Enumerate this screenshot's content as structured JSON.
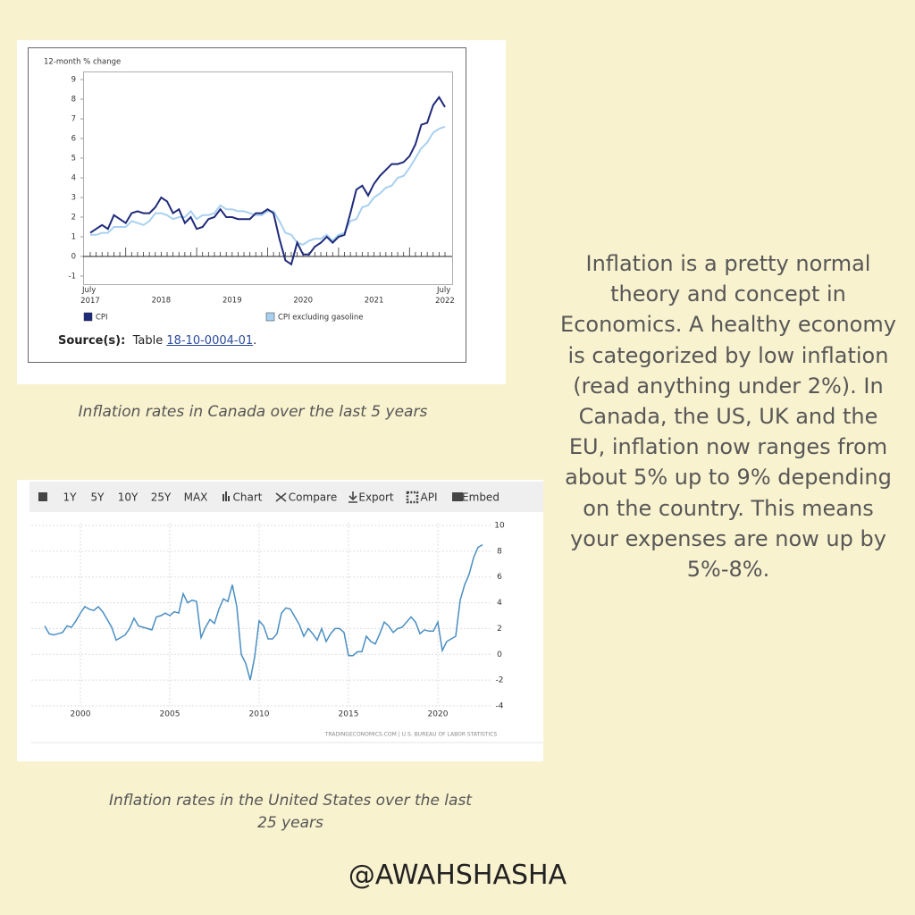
{
  "chart_data": [
    {
      "type": "line",
      "y_label": "12-month % change",
      "categories": [
        "July 2017",
        null,
        null,
        null,
        null,
        null,
        null,
        null,
        null,
        null,
        null,
        null,
        "2018",
        null,
        null,
        null,
        null,
        null,
        null,
        null,
        null,
        null,
        null,
        null,
        "2019",
        null,
        null,
        null,
        null,
        null,
        null,
        null,
        null,
        null,
        null,
        null,
        "2020",
        null,
        null,
        null,
        null,
        null,
        null,
        null,
        null,
        null,
        null,
        null,
        "2021",
        null,
        null,
        null,
        null,
        null,
        null,
        null,
        null,
        null,
        null,
        null,
        "July 2022"
      ],
      "series": [
        {
          "name": "CPI",
          "color": "#1f2a7a",
          "values": [
            1.2,
            1.4,
            1.6,
            1.4,
            2.1,
            1.9,
            1.7,
            2.2,
            2.3,
            2.2,
            2.2,
            2.5,
            3.0,
            2.8,
            2.2,
            2.4,
            1.7,
            2.0,
            1.4,
            1.5,
            1.9,
            2.0,
            2.4,
            2.0,
            2.0,
            1.9,
            1.9,
            1.9,
            2.2,
            2.2,
            2.4,
            2.2,
            0.9,
            -0.2,
            -0.4,
            0.7,
            0.1,
            0.1,
            0.5,
            0.7,
            1.0,
            0.7,
            1.0,
            1.1,
            2.2,
            3.4,
            3.6,
            3.1,
            3.7,
            4.1,
            4.4,
            4.7,
            4.7,
            4.8,
            5.1,
            5.7,
            6.7,
            6.8,
            7.7,
            8.1,
            7.6
          ]
        },
        {
          "name": "CPI excluding gasoline",
          "color": "#a8d0f0",
          "values": [
            1.1,
            1.1,
            1.2,
            1.2,
            1.5,
            1.5,
            1.5,
            1.8,
            1.7,
            1.6,
            1.8,
            2.2,
            2.2,
            2.1,
            1.9,
            2.0,
            2.0,
            2.3,
            1.9,
            2.1,
            2.1,
            2.2,
            2.6,
            2.4,
            2.4,
            2.3,
            2.3,
            2.2,
            2.1,
            2.1,
            2.3,
            2.3,
            1.8,
            1.2,
            1.1,
            0.7,
            0.6,
            0.8,
            0.9,
            0.9,
            1.1,
            0.8,
            1.1,
            1.2,
            1.8,
            1.9,
            2.5,
            2.6,
            3.0,
            3.2,
            3.5,
            3.6,
            4.0,
            4.1,
            4.5,
            5.0,
            5.5,
            5.8,
            6.3,
            6.5,
            6.6
          ]
        }
      ],
      "ylim": [
        -1,
        9
      ],
      "yticks": [
        -1,
        0,
        1,
        2,
        3,
        4,
        5,
        6,
        7,
        8,
        9
      ],
      "legend": "bottom",
      "source": {
        "label": "Source(s):",
        "text": "Table",
        "link": "18-10-0004-01",
        "end": "."
      }
    },
    {
      "type": "line",
      "toolbar": [
        "1Y",
        "5Y",
        "10Y",
        "25Y",
        "MAX",
        "Chart",
        "Compare",
        "Export",
        "API",
        "Embed"
      ],
      "x": [
        1998,
        1998.25,
        1998.5,
        1998.75,
        1999,
        1999.25,
        1999.5,
        1999.75,
        2000,
        2000.25,
        2000.5,
        2000.75,
        2001,
        2001.25,
        2001.5,
        2001.75,
        2002,
        2002.25,
        2002.5,
        2002.75,
        2003,
        2003.25,
        2003.5,
        2003.75,
        2004,
        2004.25,
        2004.5,
        2004.75,
        2005,
        2005.25,
        2005.5,
        2005.75,
        2006,
        2006.25,
        2006.5,
        2006.75,
        2007,
        2007.25,
        2007.5,
        2007.75,
        2008,
        2008.25,
        2008.5,
        2008.75,
        2009,
        2009.25,
        2009.5,
        2009.75,
        2010,
        2010.25,
        2010.5,
        2010.75,
        2011,
        2011.25,
        2011.5,
        2011.75,
        2012,
        2012.25,
        2012.5,
        2012.75,
        2013,
        2013.25,
        2013.5,
        2013.75,
        2014,
        2014.25,
        2014.5,
        2014.75,
        2015,
        2015.25,
        2015.5,
        2015.75,
        2016,
        2016.25,
        2016.5,
        2016.75,
        2017,
        2017.25,
        2017.5,
        2017.75,
        2018,
        2018.25,
        2018.5,
        2018.75,
        2019,
        2019.25,
        2019.5,
        2019.75,
        2020,
        2020.25,
        2020.5,
        2020.75,
        2021,
        2021.25,
        2021.5,
        2021.75,
        2022,
        2022.25,
        2022.5
      ],
      "series": [
        {
          "name": null,
          "color": "#4a8ec2",
          "values": [
            2.2,
            1.6,
            1.5,
            1.6,
            1.7,
            2.2,
            2.1,
            2.6,
            3.2,
            3.7,
            3.5,
            3.4,
            3.7,
            3.3,
            2.7,
            2.1,
            1.1,
            1.3,
            1.5,
            2.0,
            2.8,
            2.2,
            2.1,
            2.0,
            1.9,
            2.9,
            3.0,
            3.2,
            3.0,
            3.3,
            3.2,
            4.7,
            4.0,
            4.2,
            4.1,
            1.3,
            2.1,
            2.7,
            2.4,
            3.5,
            4.3,
            4.1,
            5.4,
            3.7,
            0.0,
            -0.7,
            -2.0,
            -0.2,
            2.6,
            2.2,
            1.2,
            1.2,
            1.6,
            3.2,
            3.6,
            3.5,
            2.9,
            2.3,
            1.4,
            2.0,
            1.6,
            1.1,
            2.0,
            1.0,
            1.6,
            2.0,
            2.0,
            1.7,
            -0.1,
            -0.1,
            0.2,
            0.2,
            1.4,
            1.0,
            0.8,
            1.6,
            2.5,
            2.2,
            1.7,
            2.0,
            2.1,
            2.5,
            2.9,
            2.5,
            1.6,
            1.9,
            1.8,
            1.8,
            2.5,
            0.3,
            1.0,
            1.2,
            1.4,
            4.2,
            5.4,
            6.2,
            7.5,
            8.3,
            8.5
          ]
        }
      ],
      "xlim": [
        1997.25,
        2023.75
      ],
      "xticks": [
        2000,
        2005,
        2010,
        2015,
        2020
      ],
      "ylim": [
        -4,
        10
      ],
      "yticks": [
        -4,
        -2,
        0,
        2,
        4,
        6,
        8,
        10
      ],
      "grid": true,
      "credit": "TRADINGECONOMICS.COM | U.S. BUREAU OF LABOR STATISTICS"
    }
  ],
  "captions": [
    "Inflation rates in Canada over the last 5 years",
    "Inflation rates in the United States over the last 25 years"
  ],
  "body": "Inflation is a pretty normal theory and concept in Economics. A healthy economy is categorized by low inflation (read anything under 2%). In Canada, the US, UK and the EU, inflation now ranges from about 5% up to 9% depending on the country. This means your expenses are now up by 5%-8%.",
  "handle": "@AWAHSHASHA"
}
